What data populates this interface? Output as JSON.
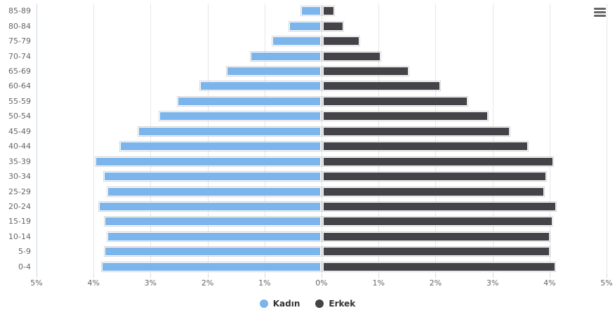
{
  "chart_data": {
    "type": "bar",
    "subtype": "population-pyramid",
    "title": "",
    "categories": [
      "85-89",
      "80-84",
      "75-79",
      "70-74",
      "65-69",
      "60-64",
      "55-59",
      "50-54",
      "45-49",
      "40-44",
      "35-39",
      "30-34",
      "25-29",
      "20-24",
      "15-19",
      "10-14",
      "5-9",
      "0-4"
    ],
    "series": [
      {
        "name": "Kadın",
        "color": "#7cb5ec",
        "side": "left",
        "values": [
          0.36,
          0.57,
          0.86,
          1.25,
          1.66,
          2.13,
          2.53,
          2.85,
          3.22,
          3.54,
          3.96,
          3.82,
          3.76,
          3.9,
          3.8,
          3.76,
          3.8,
          3.85
        ]
      },
      {
        "name": "Erkek",
        "color": "#434348",
        "side": "right",
        "values": [
          0.22,
          0.38,
          0.66,
          1.03,
          1.53,
          2.08,
          2.56,
          2.92,
          3.3,
          3.62,
          4.06,
          3.94,
          3.91,
          4.11,
          4.05,
          4.0,
          4.0,
          4.1
        ]
      }
    ],
    "value_axis": {
      "unit": "%",
      "max": 5,
      "ticks": [
        {
          "value": -5,
          "label": "5%"
        },
        {
          "value": -4,
          "label": "4%"
        },
        {
          "value": -3,
          "label": "3%"
        },
        {
          "value": -2,
          "label": "2%"
        },
        {
          "value": -1,
          "label": "1%"
        },
        {
          "value": 0,
          "label": "0%"
        },
        {
          "value": 1,
          "label": "1%"
        },
        {
          "value": 2,
          "label": "2%"
        },
        {
          "value": 3,
          "label": "3%"
        },
        {
          "value": 4,
          "label": "4%"
        },
        {
          "value": 5,
          "label": "5%"
        }
      ],
      "grid": true
    },
    "legend_position": "bottom-center"
  },
  "controls": {
    "menu_icon": "hamburger-menu-icon"
  }
}
